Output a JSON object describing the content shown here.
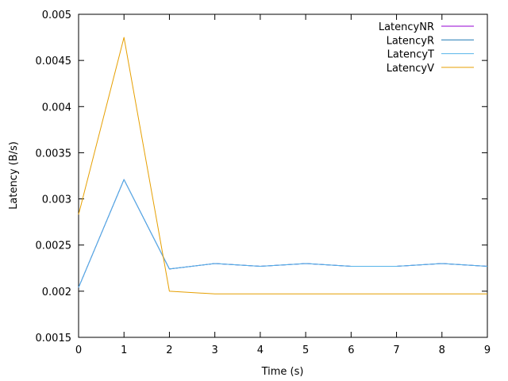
{
  "chart_data": {
    "type": "line",
    "title": "",
    "xlabel": "Time (s)",
    "ylabel": "Latency (B/s)",
    "xlim": [
      0,
      9
    ],
    "ylim": [
      0.0015,
      0.005
    ],
    "x_ticks": [
      "0",
      "1",
      "2",
      "3",
      "4",
      "5",
      "6",
      "7",
      "8",
      "9"
    ],
    "y_ticks": [
      "0.0015",
      "0.002",
      "0.0025",
      "0.003",
      "0.0035",
      "0.004",
      "0.0045",
      "0.005"
    ],
    "grid": false,
    "legend_position": "top-right",
    "x": [
      0,
      1,
      2,
      3,
      4,
      5,
      6,
      7,
      8,
      9
    ],
    "series": [
      {
        "name": "LatencyNR",
        "color": "#9400d3",
        "values": [
          0.00204,
          0.00321,
          0.00224,
          0.0023,
          0.00227,
          0.0023,
          0.00227,
          0.00227,
          0.0023,
          0.00227
        ]
      },
      {
        "name": "LatencyR",
        "color": "#1f78b4",
        "values": [
          0.00204,
          0.00321,
          0.00224,
          0.0023,
          0.00227,
          0.0023,
          0.00227,
          0.00227,
          0.0023,
          0.00227
        ]
      },
      {
        "name": "LatencyT",
        "color": "#56b4e9",
        "values": [
          0.00204,
          0.00321,
          0.00224,
          0.0023,
          0.00227,
          0.0023,
          0.00227,
          0.00227,
          0.0023,
          0.00227
        ]
      },
      {
        "name": "LatencyV",
        "color": "#e69f00",
        "values": [
          0.00283,
          0.00475,
          0.002,
          0.00197,
          0.00197,
          0.00197,
          0.00197,
          0.00197,
          0.00197,
          0.00197
        ]
      }
    ]
  }
}
